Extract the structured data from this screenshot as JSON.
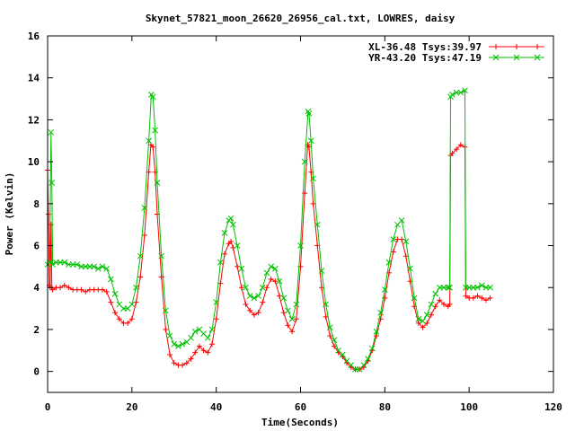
{
  "chart_data": {
    "type": "line",
    "title": "Skynet_57821_moon_26620_26956_cal.txt, LOWRES, daisy",
    "xlabel": "Time(Seconds)",
    "ylabel": "Power (Kelvin)",
    "xlim": [
      0,
      120
    ],
    "ylim": [
      -1,
      16
    ],
    "xticks": [
      0,
      20,
      40,
      60,
      80,
      100,
      120
    ],
    "yticks": [
      0,
      2,
      4,
      6,
      8,
      10,
      12,
      14,
      16
    ],
    "grid": false,
    "legend_position": "top-right",
    "series": [
      {
        "name": "XL-36.48 Tsys:39.97",
        "color": "#ff0000",
        "marker": "plus",
        "points": [
          [
            0.0,
            9.6
          ],
          [
            0.2,
            7.5
          ],
          [
            0.4,
            4.1
          ],
          [
            0.6,
            4.0
          ],
          [
            0.8,
            7.0
          ],
          [
            1.0,
            4.0
          ],
          [
            1.2,
            3.9
          ],
          [
            2,
            4.0
          ],
          [
            3,
            4.0
          ],
          [
            4,
            4.1
          ],
          [
            5,
            4.0
          ],
          [
            6,
            3.9
          ],
          [
            7,
            3.9
          ],
          [
            8,
            3.9
          ],
          [
            9,
            3.8
          ],
          [
            10,
            3.9
          ],
          [
            11,
            3.9
          ],
          [
            12,
            3.9
          ],
          [
            13,
            3.9
          ],
          [
            14,
            3.8
          ],
          [
            15,
            3.3
          ],
          [
            16,
            2.8
          ],
          [
            17,
            2.5
          ],
          [
            18,
            2.3
          ],
          [
            19,
            2.3
          ],
          [
            20,
            2.5
          ],
          [
            21,
            3.3
          ],
          [
            22,
            4.5
          ],
          [
            23,
            6.5
          ],
          [
            24,
            9.5
          ],
          [
            24.5,
            10.8
          ],
          [
            25,
            10.7
          ],
          [
            25.5,
            9.5
          ],
          [
            26,
            7.5
          ],
          [
            27,
            4.5
          ],
          [
            28,
            2.0
          ],
          [
            29,
            0.8
          ],
          [
            30,
            0.4
          ],
          [
            31,
            0.3
          ],
          [
            32,
            0.3
          ],
          [
            33,
            0.4
          ],
          [
            34,
            0.6
          ],
          [
            35,
            0.9
          ],
          [
            36,
            1.2
          ],
          [
            37,
            1.0
          ],
          [
            38,
            0.9
          ],
          [
            39,
            1.3
          ],
          [
            40,
            2.5
          ],
          [
            41,
            4.2
          ],
          [
            42,
            5.6
          ],
          [
            43,
            6.1
          ],
          [
            43.5,
            6.2
          ],
          [
            44,
            5.9
          ],
          [
            45,
            5.0
          ],
          [
            46,
            4.0
          ],
          [
            47,
            3.2
          ],
          [
            48,
            2.9
          ],
          [
            49,
            2.7
          ],
          [
            50,
            2.8
          ],
          [
            51,
            3.3
          ],
          [
            52,
            4.0
          ],
          [
            53,
            4.4
          ],
          [
            54,
            4.3
          ],
          [
            55,
            3.6
          ],
          [
            56,
            2.8
          ],
          [
            57,
            2.2
          ],
          [
            58,
            1.9
          ],
          [
            59,
            2.5
          ],
          [
            60,
            5.0
          ],
          [
            61,
            8.5
          ],
          [
            61.7,
            10.8
          ],
          [
            62,
            10.7
          ],
          [
            62.5,
            9.5
          ],
          [
            63,
            8.0
          ],
          [
            64,
            6.0
          ],
          [
            65,
            4.0
          ],
          [
            66,
            2.6
          ],
          [
            67,
            1.7
          ],
          [
            68,
            1.2
          ],
          [
            69,
            0.9
          ],
          [
            70,
            0.7
          ],
          [
            71,
            0.4
          ],
          [
            72,
            0.2
          ],
          [
            73,
            0.1
          ],
          [
            74,
            0.1
          ],
          [
            75,
            0.2
          ],
          [
            76,
            0.5
          ],
          [
            77,
            1.0
          ],
          [
            78,
            1.7
          ],
          [
            79,
            2.5
          ],
          [
            80,
            3.5
          ],
          [
            81,
            4.7
          ],
          [
            82,
            5.7
          ],
          [
            83,
            6.3
          ],
          [
            84,
            6.3
          ],
          [
            85,
            5.5
          ],
          [
            86,
            4.3
          ],
          [
            87,
            3.1
          ],
          [
            88,
            2.3
          ],
          [
            89,
            2.1
          ],
          [
            90,
            2.3
          ],
          [
            91,
            2.7
          ],
          [
            92,
            3.1
          ],
          [
            93,
            3.4
          ],
          [
            94,
            3.2
          ],
          [
            95,
            3.1
          ],
          [
            95.4,
            3.2
          ],
          [
            95.6,
            10.3
          ],
          [
            96,
            10.4
          ],
          [
            97,
            10.6
          ],
          [
            98,
            10.8
          ],
          [
            99,
            10.7
          ],
          [
            99.2,
            3.6
          ],
          [
            100,
            3.5
          ],
          [
            101,
            3.5
          ],
          [
            102,
            3.6
          ],
          [
            103,
            3.5
          ],
          [
            104,
            3.4
          ],
          [
            105,
            3.5
          ]
        ]
      },
      {
        "name": "YR-43.20 Tsys:47.19",
        "color": "#00c000",
        "marker": "cross",
        "points": [
          [
            0.0,
            5.1
          ],
          [
            0.5,
            5.2
          ],
          [
            0.8,
            11.4
          ],
          [
            1.0,
            9.0
          ],
          [
            1.2,
            5.1
          ],
          [
            2,
            5.2
          ],
          [
            3,
            5.2
          ],
          [
            4,
            5.2
          ],
          [
            5,
            5.1
          ],
          [
            6,
            5.1
          ],
          [
            7,
            5.1
          ],
          [
            8,
            5.0
          ],
          [
            9,
            5.0
          ],
          [
            10,
            5.0
          ],
          [
            11,
            5.0
          ],
          [
            12,
            4.9
          ],
          [
            13,
            5.0
          ],
          [
            14,
            4.9
          ],
          [
            15,
            4.4
          ],
          [
            16,
            3.7
          ],
          [
            17,
            3.2
          ],
          [
            18,
            3.0
          ],
          [
            19,
            3.0
          ],
          [
            20,
            3.2
          ],
          [
            21,
            4.0
          ],
          [
            22,
            5.5
          ],
          [
            23,
            7.8
          ],
          [
            24,
            11.0
          ],
          [
            24.6,
            13.2
          ],
          [
            25,
            13.1
          ],
          [
            25.5,
            11.5
          ],
          [
            26,
            9.0
          ],
          [
            27,
            5.5
          ],
          [
            28,
            2.9
          ],
          [
            29,
            1.7
          ],
          [
            30,
            1.3
          ],
          [
            31,
            1.2
          ],
          [
            32,
            1.3
          ],
          [
            33,
            1.4
          ],
          [
            34,
            1.6
          ],
          [
            35,
            1.9
          ],
          [
            36,
            2.0
          ],
          [
            37,
            1.8
          ],
          [
            38,
            1.6
          ],
          [
            39,
            2.0
          ],
          [
            40,
            3.3
          ],
          [
            41,
            5.2
          ],
          [
            42,
            6.6
          ],
          [
            43,
            7.2
          ],
          [
            43.5,
            7.3
          ],
          [
            44,
            7.0
          ],
          [
            45,
            6.0
          ],
          [
            46,
            4.9
          ],
          [
            47,
            4.0
          ],
          [
            48,
            3.6
          ],
          [
            49,
            3.5
          ],
          [
            50,
            3.6
          ],
          [
            51,
            4.0
          ],
          [
            52,
            4.7
          ],
          [
            53,
            5.0
          ],
          [
            54,
            4.9
          ],
          [
            55,
            4.3
          ],
          [
            56,
            3.5
          ],
          [
            57,
            2.9
          ],
          [
            58,
            2.5
          ],
          [
            59,
            3.2
          ],
          [
            60,
            6.0
          ],
          [
            61,
            10.0
          ],
          [
            61.8,
            12.4
          ],
          [
            62,
            12.3
          ],
          [
            62.5,
            11.0
          ],
          [
            63,
            9.2
          ],
          [
            64,
            7.0
          ],
          [
            65,
            4.8
          ],
          [
            66,
            3.2
          ],
          [
            67,
            2.1
          ],
          [
            68,
            1.5
          ],
          [
            69,
            1.0
          ],
          [
            70,
            0.8
          ],
          [
            71,
            0.5
          ],
          [
            72,
            0.3
          ],
          [
            73,
            0.1
          ],
          [
            74,
            0.1
          ],
          [
            75,
            0.3
          ],
          [
            76,
            0.6
          ],
          [
            77,
            1.1
          ],
          [
            78,
            1.9
          ],
          [
            79,
            2.8
          ],
          [
            80,
            3.9
          ],
          [
            81,
            5.2
          ],
          [
            82,
            6.3
          ],
          [
            83,
            7.0
          ],
          [
            84,
            7.2
          ],
          [
            85,
            6.2
          ],
          [
            86,
            4.9
          ],
          [
            87,
            3.5
          ],
          [
            88,
            2.5
          ],
          [
            89,
            2.4
          ],
          [
            90,
            2.7
          ],
          [
            91,
            3.2
          ],
          [
            92,
            3.7
          ],
          [
            93,
            4.0
          ],
          [
            94,
            4.0
          ],
          [
            95,
            4.0
          ],
          [
            95.4,
            4.0
          ],
          [
            95.6,
            13.1
          ],
          [
            96,
            13.2
          ],
          [
            97,
            13.3
          ],
          [
            98,
            13.3
          ],
          [
            99,
            13.4
          ],
          [
            99.2,
            4.0
          ],
          [
            100,
            4.0
          ],
          [
            101,
            4.0
          ],
          [
            102,
            4.0
          ],
          [
            103,
            4.1
          ],
          [
            104,
            4.0
          ],
          [
            105,
            4.0
          ]
        ]
      }
    ]
  }
}
